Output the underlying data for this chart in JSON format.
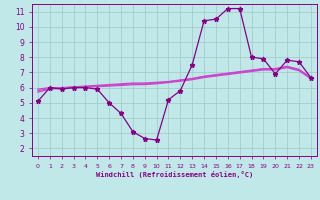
{
  "title": "",
  "xlabel": "Windchill (Refroidissement éolien,°C)",
  "background_color": "#c0e8e8",
  "grid_color": "#a0c8c8",
  "line_color": "#880088",
  "line_color2": "#cc44cc",
  "xlim": [
    -0.5,
    23.5
  ],
  "ylim": [
    1.5,
    11.5
  ],
  "yticks": [
    2,
    3,
    4,
    5,
    6,
    7,
    8,
    9,
    10,
    11
  ],
  "xticks": [
    0,
    1,
    2,
    3,
    4,
    5,
    6,
    7,
    8,
    9,
    10,
    11,
    12,
    13,
    14,
    15,
    16,
    17,
    18,
    19,
    20,
    21,
    22,
    23
  ],
  "series1_x": [
    0,
    1,
    2,
    3,
    4,
    5,
    6,
    7,
    8,
    9,
    10,
    11,
    12,
    13,
    14,
    15,
    16,
    17,
    18,
    19,
    20,
    21,
    22,
    23
  ],
  "series1_y": [
    5.1,
    6.0,
    5.9,
    6.0,
    6.0,
    5.9,
    5.0,
    4.3,
    3.1,
    2.65,
    2.55,
    5.2,
    5.8,
    7.5,
    10.4,
    10.5,
    11.2,
    11.2,
    8.0,
    7.9,
    6.9,
    7.8,
    7.7,
    6.65
  ],
  "series2_x": [
    0,
    1,
    2,
    3,
    4,
    5,
    6,
    7,
    8,
    9,
    10,
    11,
    12,
    13,
    14,
    15,
    16,
    17,
    18,
    19,
    20,
    21,
    22,
    23
  ],
  "series2_y": [
    5.9,
    6.0,
    6.0,
    6.05,
    6.1,
    6.15,
    6.2,
    6.25,
    6.3,
    6.3,
    6.35,
    6.4,
    6.5,
    6.6,
    6.75,
    6.85,
    6.95,
    7.05,
    7.15,
    7.25,
    7.25,
    7.4,
    7.2,
    6.65
  ],
  "series3_x": [
    0,
    1,
    2,
    3,
    4,
    5,
    6,
    7,
    8,
    9,
    10,
    11,
    12,
    13,
    14,
    15,
    16,
    17,
    18,
    19,
    20,
    21,
    22,
    23
  ],
  "series3_y": [
    5.8,
    5.95,
    5.98,
    6.02,
    6.06,
    6.1,
    6.15,
    6.2,
    6.25,
    6.25,
    6.3,
    6.38,
    6.48,
    6.58,
    6.72,
    6.82,
    6.92,
    7.02,
    7.12,
    7.22,
    7.22,
    7.37,
    7.17,
    6.62
  ],
  "series4_x": [
    0,
    1,
    2,
    3,
    4,
    5,
    6,
    7,
    8,
    9,
    10,
    11,
    12,
    13,
    14,
    15,
    16,
    17,
    18,
    19,
    20,
    21,
    22,
    23
  ],
  "series4_y": [
    5.7,
    5.9,
    5.95,
    5.99,
    6.03,
    6.06,
    6.1,
    6.14,
    6.19,
    6.2,
    6.25,
    6.33,
    6.42,
    6.52,
    6.66,
    6.76,
    6.86,
    6.96,
    7.06,
    7.16,
    7.16,
    7.31,
    7.11,
    6.58
  ]
}
